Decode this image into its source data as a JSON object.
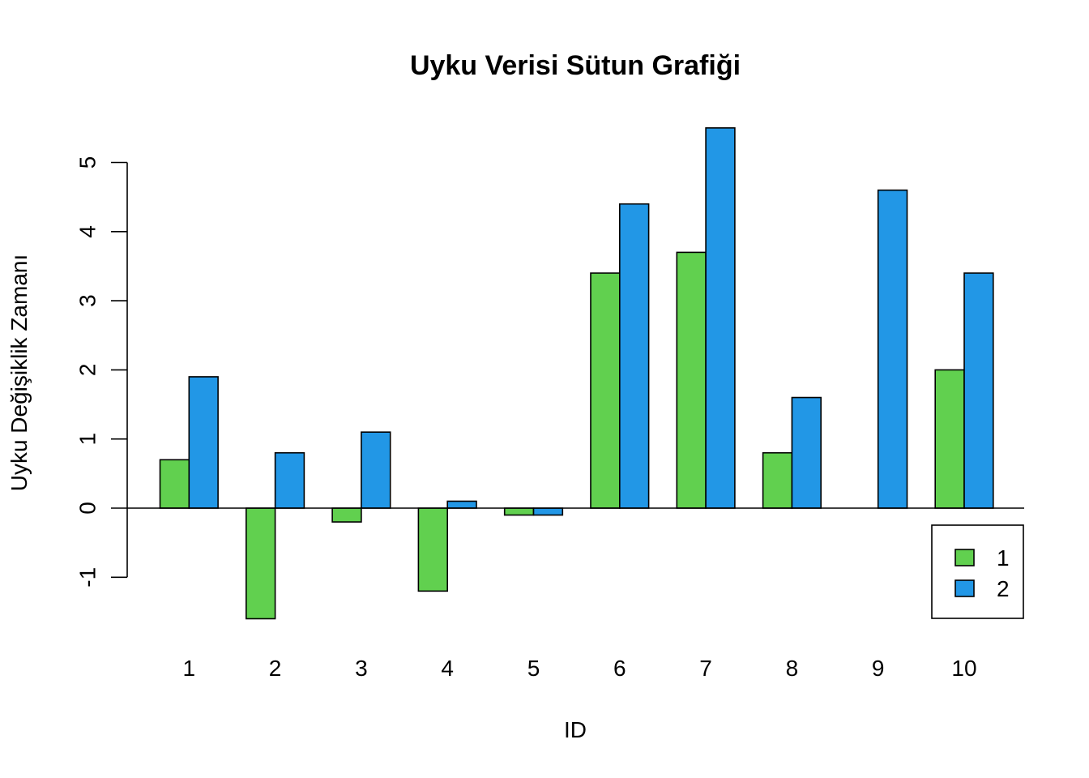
{
  "chart_data": {
    "type": "bar",
    "title": "Uyku Verisi Sütun Grafiği",
    "xlabel": "ID",
    "ylabel": "Uyku Değişiklik Zamanı",
    "categories": [
      "1",
      "2",
      "3",
      "4",
      "5",
      "6",
      "7",
      "8",
      "9",
      "10"
    ],
    "series": [
      {
        "name": "1",
        "color": "#61D04F",
        "values": [
          0.7,
          -1.6,
          -0.2,
          -1.2,
          -0.1,
          3.4,
          3.7,
          0.8,
          0.0,
          2.0
        ]
      },
      {
        "name": "2",
        "color": "#2297E6",
        "values": [
          1.9,
          0.8,
          1.1,
          0.1,
          -0.1,
          4.4,
          5.5,
          1.6,
          4.6,
          3.4
        ]
      }
    ],
    "yticks": [
      "-1",
      "0",
      "1",
      "2",
      "3",
      "4",
      "5"
    ],
    "ylim": [
      -1.6,
      5.5
    ],
    "grid": false,
    "legend_position": "bottom-right",
    "baseline": 0
  }
}
